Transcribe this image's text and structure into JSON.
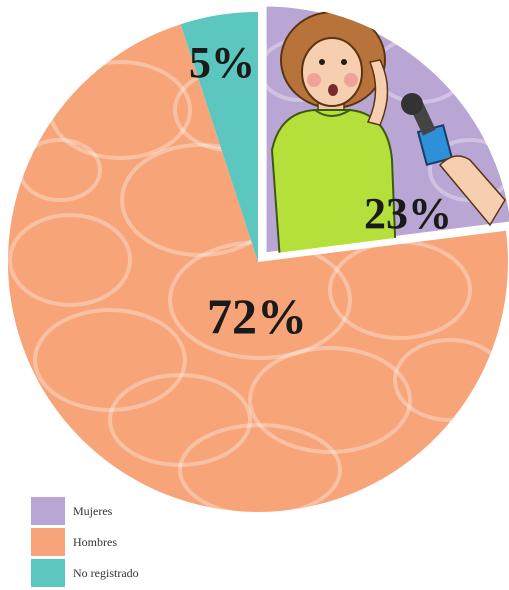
{
  "chart_data": {
    "type": "pie",
    "categories": [
      "Mujeres",
      "Hombres",
      "No registrado"
    ],
    "values": [
      23,
      72,
      5
    ],
    "labels": [
      "23%",
      "72%",
      "5%"
    ],
    "colors": [
      "#b9a6d4",
      "#f7a479",
      "#5cc7be"
    ],
    "exploded": [
      "Mujeres"
    ],
    "legend": "bottom-left",
    "title": ""
  },
  "legend": {
    "items": [
      {
        "label": "Mujeres",
        "color": "#b9a6d4"
      },
      {
        "label": "Hombres",
        "color": "#f7a479"
      },
      {
        "label": "No registrado",
        "color": "#5cc7be"
      }
    ]
  },
  "illustration": {
    "description_icon": "woman-with-microphone-icon"
  }
}
